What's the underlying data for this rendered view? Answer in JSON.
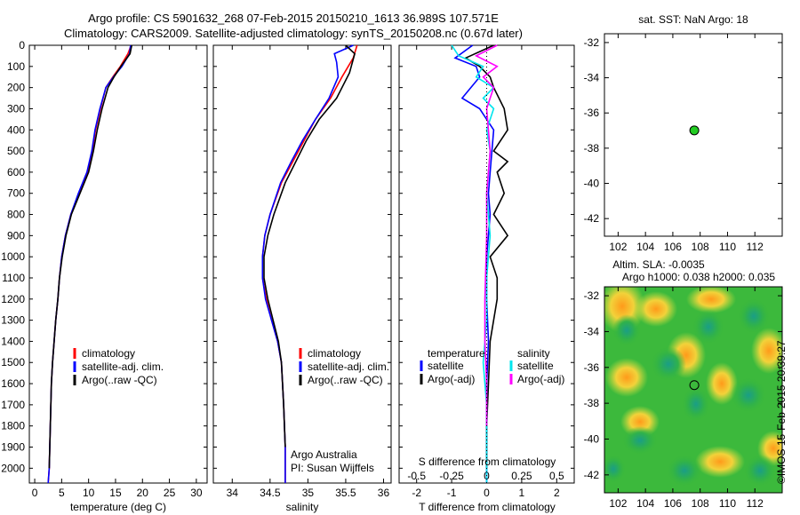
{
  "header": {
    "line1": "Argo profile: CS 5901632_268 07-Feb-2015 20150210_1613 36.989S 107.571E",
    "line2": "Climatology: CARS2009. Satellite-adjusted climatology: synTS_20150208.nc (0.67d later)"
  },
  "stamp": "©IMOS 15-Feb-2015 20:39:27",
  "colors": {
    "climatology": "#ff0000",
    "satellite": "#0000ff",
    "argo": "#000000",
    "s_satellite": "#00e5ee",
    "s_argo": "#ff00ff",
    "float_marker": "#22cc22"
  },
  "chart_data": [
    {
      "id": "temperature",
      "type": "line",
      "xlabel": "temperature (deg C)",
      "xlim": [
        -1,
        32
      ],
      "xticks": [
        0,
        5,
        10,
        15,
        20,
        25,
        30
      ],
      "ylim": [
        0,
        2070
      ],
      "yticks": [
        0,
        100,
        200,
        300,
        400,
        500,
        600,
        700,
        800,
        900,
        1000,
        1100,
        1200,
        1300,
        1400,
        1500,
        1600,
        1700,
        1800,
        1900,
        2000
      ],
      "legend": [
        "climatology",
        "satellite-adj. clim.",
        "Argo(..raw -QC)"
      ],
      "series": [
        {
          "name": "climatology",
          "color": "#ff0000",
          "x": [
            17.9,
            17.3,
            15.9,
            14.5,
            13.2,
            12.2,
            11.3,
            10.7,
            9.8,
            8.2,
            6.7,
            5.7,
            5.0,
            4.6,
            4.3,
            3.9,
            3.6,
            3.3,
            3.1,
            2.9,
            2.7,
            2.5
          ],
          "y": [
            0,
            40,
            100,
            150,
            200,
            300,
            400,
            500,
            600,
            700,
            800,
            900,
            1000,
            1100,
            1200,
            1300,
            1400,
            1500,
            1600,
            1800,
            2000,
            2070
          ]
        },
        {
          "name": "satellite-adj. clim.",
          "color": "#0000ff",
          "x": [
            17.8,
            17.6,
            16.2,
            14.6,
            13.2,
            12.1,
            11.2,
            10.6,
            9.7,
            8.1,
            6.7,
            5.7,
            5.0,
            4.6,
            4.3,
            3.9,
            3.6,
            3.3,
            3.1,
            2.9,
            2.7,
            2.5
          ],
          "y": [
            0,
            40,
            100,
            150,
            200,
            300,
            400,
            500,
            600,
            700,
            800,
            900,
            1000,
            1100,
            1200,
            1300,
            1400,
            1500,
            1600,
            1800,
            2000,
            2070
          ]
        },
        {
          "name": "Argo(..raw -QC)",
          "color": "#000000",
          "x": [
            18.0,
            17.7,
            16.0,
            14.7,
            13.6,
            12.5,
            11.6,
            10.9,
            10.0,
            8.4,
            6.8,
            5.8,
            5.1,
            4.6,
            4.3,
            3.9,
            3.6,
            3.3,
            3.1,
            2.9,
            2.7
          ],
          "y": [
            0,
            40,
            100,
            150,
            200,
            300,
            400,
            500,
            600,
            700,
            800,
            900,
            1000,
            1100,
            1200,
            1300,
            1400,
            1500,
            1600,
            1800,
            2000
          ]
        }
      ]
    },
    {
      "id": "salinity",
      "type": "line",
      "xlabel": "salinity",
      "xlim": [
        33.75,
        36.1
      ],
      "xticks": [
        34,
        34.5,
        35,
        35.5,
        36
      ],
      "xticklabels": [
        "34",
        "34.5",
        "35",
        "35.5",
        "36"
      ],
      "ylim": [
        0,
        2070
      ],
      "legend": [
        "climatology",
        "satellite-adj. clim.",
        "Argo(..raw -QC)"
      ],
      "annotation": [
        "Argo Australia",
        "PI: Susan Wijffels"
      ],
      "series": [
        {
          "name": "climatology",
          "color": "#ff0000",
          "x": [
            35.65,
            35.6,
            35.45,
            35.3,
            35.1,
            34.95,
            34.8,
            34.65,
            34.5,
            34.43,
            34.4,
            34.4,
            34.45,
            34.52,
            34.6,
            34.65,
            34.68,
            34.7,
            34.7
          ],
          "y": [
            0,
            60,
            150,
            250,
            350,
            450,
            550,
            650,
            800,
            900,
            1000,
            1100,
            1200,
            1300,
            1400,
            1500,
            1700,
            1900,
            2070
          ]
        },
        {
          "name": "satellite-adj. clim.",
          "color": "#0000ff",
          "x": [
            35.6,
            35.35,
            35.38,
            35.4,
            35.28,
            35.1,
            34.93,
            34.78,
            34.64,
            34.5,
            34.43,
            34.4,
            34.4,
            34.44,
            34.52,
            34.6,
            34.65,
            34.68,
            34.7,
            34.7
          ],
          "y": [
            0,
            40,
            80,
            150,
            250,
            350,
            450,
            550,
            650,
            800,
            900,
            1000,
            1100,
            1200,
            1300,
            1400,
            1500,
            1700,
            1900,
            2070
          ]
        },
        {
          "name": "Argo(..raw -QC)",
          "color": "#000000",
          "x": [
            35.5,
            35.62,
            35.55,
            35.38,
            35.15,
            34.98,
            34.84,
            34.7,
            34.55,
            34.47,
            34.42,
            34.42,
            34.47,
            34.54,
            34.61,
            34.65,
            34.68,
            34.7
          ],
          "y": [
            0,
            40,
            130,
            250,
            350,
            450,
            550,
            650,
            800,
            900,
            1000,
            1100,
            1200,
            1300,
            1400,
            1500,
            1700,
            1900
          ]
        }
      ]
    },
    {
      "id": "differences",
      "type": "line",
      "xlabel": "T difference from climatology",
      "xlabel_top": "S difference from climatology",
      "xlim": [
        -2.5,
        2.5
      ],
      "xticks": [
        -2,
        -1,
        0,
        1,
        2
      ],
      "xticks_top_labels": [
        "-0.5",
        "-0.25",
        "0",
        "0.25",
        "0.5"
      ],
      "ylim": [
        0,
        2070
      ],
      "legend_t_title": "temperature",
      "legend_s_title": "salinity",
      "legend_t": [
        "satellite",
        "Argo(-adj)"
      ],
      "legend_s": [
        "satellite",
        "Argo(-adj)"
      ],
      "series": [
        {
          "name": "T satellite",
          "color": "#0000ff",
          "x": [
            -0.4,
            -0.9,
            -0.3,
            -0.2,
            -0.7,
            -0.2,
            0.0,
            0.2,
            0.15,
            0.1,
            0.05,
            0.1,
            0.0,
            0.0,
            0.05,
            0.0,
            0.0,
            0.0,
            0.0
          ],
          "y": [
            0,
            60,
            100,
            150,
            250,
            300,
            350,
            400,
            500,
            600,
            700,
            800,
            1000,
            1200,
            1400,
            1600,
            1800,
            1950,
            2070
          ]
        },
        {
          "name": "Argo(-adj)",
          "color": "#000000",
          "x": [
            0.2,
            -0.6,
            -0.2,
            0.1,
            0.2,
            0.5,
            0.6,
            0.2,
            0.6,
            0.3,
            0.5,
            0.2,
            0.6,
            0.1,
            0.3,
            0.3,
            0.1,
            0.05,
            0.0,
            0.0,
            0.0
          ],
          "y": [
            0,
            60,
            100,
            150,
            200,
            300,
            400,
            500,
            550,
            600,
            700,
            800,
            900,
            1000,
            1100,
            1200,
            1400,
            1600,
            1800,
            1950,
            2000
          ]
        },
        {
          "name": "S satellite",
          "color": "#00e5ee",
          "x": [
            -1.0,
            -0.8,
            -0.1,
            -0.3,
            0.2,
            -0.1,
            0.2,
            0.0,
            0.1,
            0.0,
            0.1,
            0.0,
            0.0,
            -0.1,
            0.0,
            0.0,
            0.0
          ],
          "y": [
            0,
            50,
            100,
            150,
            200,
            250,
            300,
            400,
            500,
            700,
            900,
            1100,
            1300,
            1500,
            1700,
            1900,
            2070
          ]
        },
        {
          "name": "S Argo(-adj)",
          "color": "#ff00ff",
          "x": [
            0.3,
            -0.3,
            0.3,
            -0.1,
            0.2,
            0.1,
            0.0,
            0.1,
            0.0,
            0.0,
            -0.05,
            -0.05,
            0.0,
            0.0
          ],
          "y": [
            0,
            50,
            100,
            150,
            200,
            250,
            300,
            500,
            700,
            900,
            1200,
            1400,
            1600,
            1800
          ]
        }
      ]
    },
    {
      "id": "sst_map",
      "type": "scatter",
      "title": "sat. SST: NaN Argo: 18",
      "xlim": [
        101,
        114
      ],
      "ylim": [
        -43,
        -31.5
      ],
      "xticks": [
        102,
        104,
        106,
        108,
        110,
        112
      ],
      "yticks": [
        -32,
        -34,
        -36,
        -38,
        -40,
        -42
      ],
      "points": [
        {
          "x": 107.571,
          "y": -36.989
        }
      ]
    },
    {
      "id": "sla_map",
      "type": "heatmap",
      "title_line1": "Altim. SLA: -0.0035",
      "title_line2": "Argo h1000: 0.038 h2000: 0.035",
      "xlim": [
        101,
        114
      ],
      "ylim": [
        -43,
        -31.5
      ],
      "xticks": [
        102,
        104,
        106,
        108,
        110,
        112
      ],
      "yticks": [
        -32,
        -34,
        -36,
        -38,
        -40,
        -42
      ],
      "points": [
        {
          "x": 107.571,
          "y": -36.989
        }
      ]
    }
  ]
}
